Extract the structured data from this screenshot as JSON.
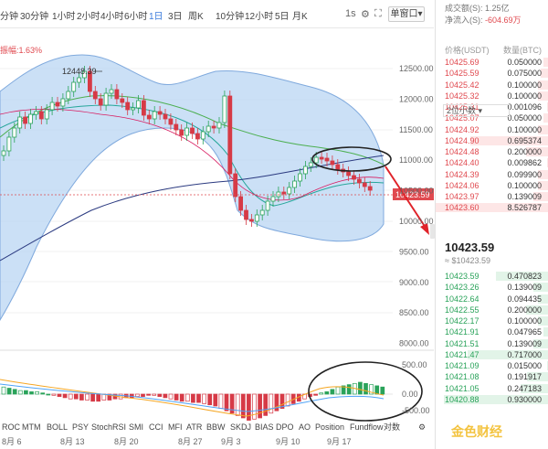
{
  "toolbar": {
    "timeframes": [
      "分钟",
      "30分钟",
      "1小时",
      "2小时",
      "4小时",
      "6小时",
      "1日",
      "3日",
      "周K",
      "10分钟",
      "12小时",
      "5日",
      "月K"
    ],
    "active_index": 6,
    "extra": "1s",
    "settings_icon": "gear-icon",
    "fullscreen_icon": "fullscreen-icon",
    "window_btn": "单窗口"
  },
  "chart": {
    "indicator_label": "振幅:1.63%",
    "y_axis": [
      "12500.00",
      "12000.00",
      "11500.00",
      "11000.00",
      "10500.00",
      "10000.00",
      "9500.00",
      "9000.00",
      "8500.00",
      "8000.00"
    ],
    "high_label": "12448.39",
    "price_tag": "10423.59",
    "dates": [
      "8月 6",
      "8月 13",
      "8月 20",
      "8月 27",
      "9月 3",
      "9月 10",
      "9月 17"
    ],
    "macd_axis": [
      "500.00",
      "0.00",
      "-500.00"
    ],
    "indicators": [
      "ROC",
      "MTM",
      "BOLL",
      "PSY",
      "StochRSI",
      "SMI",
      "CCI",
      "MFI",
      "ATR",
      "BBW",
      "SKDJ",
      "BIAS",
      "DPO",
      "AO",
      "Position",
      "Fundflow"
    ],
    "contrast": "对数",
    "accent_up": "#2aa35a",
    "accent_down": "#d63a46"
  },
  "right_panel": {
    "volume": "成交额(S): 1.25亿",
    "net_flow_label": "净流入(S): ",
    "net_flow_value": "-604.69万",
    "col_price": "价格(USDT)",
    "col_qty": "数量(BTC)",
    "asks": [
      {
        "price": "10425.69",
        "qty": "0.050000"
      },
      {
        "price": "10425.59",
        "qty": "0.075000"
      },
      {
        "price": "10425.42",
        "qty": "0.100000"
      },
      {
        "price": "10425.32",
        "qty": "0.100000"
      },
      {
        "price": "10425.31",
        "qty": "0.001096"
      },
      {
        "price": "10425.07",
        "qty": "0.050000"
      },
      {
        "price": "10424.92",
        "qty": "0.100000"
      },
      {
        "price": "10424.90",
        "qty": "0.695374"
      },
      {
        "price": "10424.48",
        "qty": "0.200000"
      },
      {
        "price": "10424.40",
        "qty": "0.009862"
      },
      {
        "price": "10424.39",
        "qty": "0.099900"
      },
      {
        "price": "10424.06",
        "qty": "0.100000"
      },
      {
        "price": "10423.97",
        "qty": "0.139009"
      },
      {
        "price": "10423.60",
        "qty": "8.526787"
      }
    ],
    "depth_select": "2位小数",
    "last_price": "10423.59",
    "last_price_sub": "≈ $10423.59",
    "bids": [
      {
        "price": "10423.59",
        "qty": "0.470823"
      },
      {
        "price": "10423.26",
        "qty": "0.139009"
      },
      {
        "price": "10422.64",
        "qty": "0.094435"
      },
      {
        "price": "10422.55",
        "qty": "0.200000"
      },
      {
        "price": "10422.17",
        "qty": "0.100000"
      },
      {
        "price": "10421.91",
        "qty": "0.047965"
      },
      {
        "price": "10421.51",
        "qty": "0.139009"
      },
      {
        "price": "10421.47",
        "qty": "0.717000"
      },
      {
        "price": "10421.09",
        "qty": "0.015000"
      },
      {
        "price": "10421.08",
        "qty": "0.191917"
      },
      {
        "price": "10421.05",
        "qty": "0.247183"
      },
      {
        "price": "10420.88",
        "qty": "0.930000"
      }
    ],
    "watermark": "金色财经"
  }
}
